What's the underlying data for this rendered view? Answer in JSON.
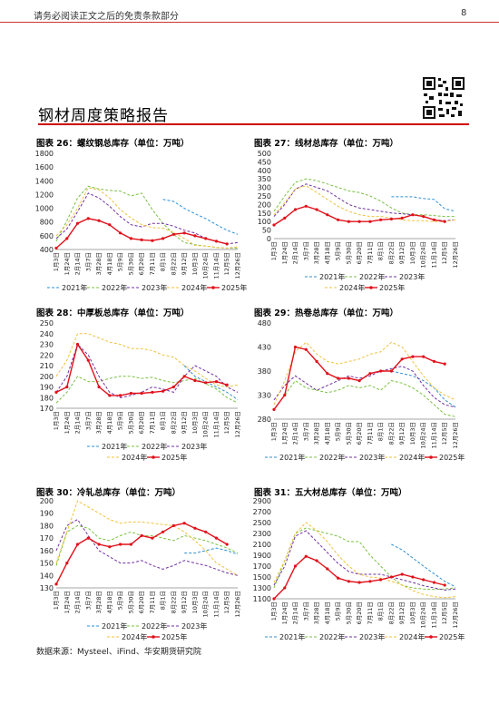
{
  "header": {
    "disclaimer": "请务必阅读正文之后的免责条款部分",
    "page_number": "8"
  },
  "doc_title": "钢材周度策略报告",
  "source": "数据来源：Mysteel、iFind、华安期货研究院",
  "colors": {
    "2021": "#2f8fd0",
    "2022": "#7bc043",
    "2023": "#7030a0",
    "2024": "#f0c23c",
    "2025": "#e0101a",
    "rule": "#cc0000"
  },
  "chart_data": [
    {
      "type": "line",
      "title": "图表 26：螺纹钢总库存（单位：万吨）",
      "x": [
        "1月3日",
        "1月24日",
        "2月14日",
        "3月7日",
        "3月28日",
        "4月18日",
        "5月9日",
        "5月30日",
        "6月20日",
        "7月11日",
        "8月1日",
        "8月22日",
        "9月12日",
        "10月3日",
        "10月24日",
        "11月14日",
        "12月5日",
        "12月26日"
      ],
      "xticks": [
        "1月3日",
        "1月24日",
        "2月14日",
        "3月7日",
        "3月28日",
        "4月18日",
        "5月9日",
        "5月30日",
        "6月20日",
        "7月11日",
        "8月1日",
        "8月22日",
        "9月12日",
        "10月3日",
        "10月24日",
        "11月14日",
        "12月5日",
        "12月26日"
      ],
      "yticks": [
        400,
        600,
        800,
        1000,
        1200,
        1400,
        1600,
        1800
      ],
      "ylim": [
        400,
        1800
      ],
      "legend_rows": [
        [
          "2021年",
          "2022年",
          "2023年",
          "2024年",
          "2025年"
        ]
      ],
      "series": [
        {
          "name": "2021年",
          "values": [
            null,
            null,
            null,
            null,
            null,
            null,
            null,
            null,
            null,
            null,
            1130,
            1100,
            1000,
            920,
            850,
            760,
            680,
            620
          ]
        },
        {
          "name": "2022年",
          "values": [
            520,
            820,
            1150,
            1320,
            1280,
            1260,
            1250,
            1180,
            1220,
            980,
            780,
            620,
            500,
            470,
            450,
            430,
            420,
            420
          ]
        },
        {
          "name": "2023年",
          "values": [
            560,
            700,
            950,
            1220,
            1150,
            1030,
            880,
            760,
            730,
            780,
            780,
            740,
            680,
            640,
            560,
            520,
            480,
            500
          ]
        },
        {
          "name": "2024年",
          "values": [
            600,
            760,
            1000,
            1300,
            1270,
            1150,
            980,
            860,
            760,
            720,
            710,
            650,
            560,
            460,
            450,
            430,
            420,
            440
          ]
        },
        {
          "name": "2025年",
          "values": [
            420,
            560,
            780,
            850,
            820,
            760,
            640,
            560,
            540,
            530,
            560,
            620,
            640,
            600,
            560,
            520,
            480,
            null
          ]
        }
      ]
    },
    {
      "type": "line",
      "title": "图表 27：线材总库存（单位：万吨）",
      "x": [
        "1月3日",
        "1月24日",
        "2月14日",
        "3月7日",
        "3月28日",
        "4月18日",
        "5月9日",
        "5月30日",
        "6月20日",
        "7月11日",
        "8月1日",
        "8月22日",
        "9月12日",
        "10月3日",
        "10月24日",
        "11月14日",
        "12月5日",
        "12月26日"
      ],
      "xticks": [
        "1月3日",
        "1月24日",
        "2月14日",
        "3月7日",
        "3月28日",
        "4月18日",
        "5月9日",
        "5月30日",
        "6月20日",
        "7月11日",
        "8月1日",
        "8月22日",
        "9月12日",
        "10月3日",
        "10月24日",
        "11月14日",
        "12月5日",
        "12月26日"
      ],
      "yticks": [
        0,
        50,
        100,
        150,
        200,
        250,
        300,
        350,
        400,
        450,
        500
      ],
      "ylim": [
        0,
        500
      ],
      "legend_rows": [
        [
          "2021年",
          "2022年",
          "2023年"
        ],
        [
          "2024年",
          "2025年"
        ]
      ],
      "series": [
        {
          "name": "2021年",
          "values": [
            null,
            null,
            null,
            null,
            null,
            null,
            null,
            null,
            null,
            null,
            null,
            245,
            245,
            245,
            235,
            230,
            175,
            160
          ]
        },
        {
          "name": "2022年",
          "values": [
            160,
            250,
            330,
            350,
            340,
            320,
            300,
            280,
            270,
            250,
            220,
            180,
            150,
            140,
            140,
            135,
            130,
            130
          ]
        },
        {
          "name": "2023年",
          "values": [
            130,
            200,
            290,
            320,
            300,
            280,
            240,
            200,
            180,
            170,
            160,
            150,
            145,
            140,
            130,
            110,
            105,
            110
          ]
        },
        {
          "name": "2024年",
          "values": [
            140,
            210,
            290,
            310,
            270,
            230,
            190,
            160,
            140,
            130,
            130,
            120,
            110,
            105,
            105,
            100,
            100,
            110
          ]
        },
        {
          "name": "2025年",
          "values": [
            80,
            120,
            170,
            190,
            170,
            140,
            110,
            100,
            100,
            100,
            110,
            115,
            120,
            140,
            130,
            110,
            100,
            null
          ]
        }
      ]
    },
    {
      "type": "line",
      "title": "图表 28：中厚板总库存（单位：万吨）",
      "x": [
        "1月3日",
        "1月24日",
        "2月14日",
        "3月7日",
        "3月28日",
        "4月18日",
        "5月9日",
        "5月30日",
        "6月20日",
        "7月11日",
        "8月1日",
        "8月22日",
        "9月12日",
        "10月3日",
        "10月24日",
        "11月14日",
        "12月5日",
        "12月26日"
      ],
      "xticks": [
        "1月3日",
        "1月24日",
        "2月14日",
        "3月7日",
        "3月28日",
        "4月18日",
        "5月9日",
        "5月30日",
        "6月20日",
        "7月11日",
        "8月1日",
        "8月22日",
        "9月12日",
        "10月3日",
        "10月24日",
        "11月14日",
        "12月5日",
        "12月26日"
      ],
      "yticks": [
        170,
        180,
        190,
        200,
        210,
        220,
        230,
        240,
        250
      ],
      "ylim": [
        170,
        250
      ],
      "legend_rows": [
        [
          "2021年",
          "2022年",
          "2023年"
        ],
        [
          "2024年",
          "2025年"
        ]
      ],
      "series": [
        {
          "name": "2021年",
          "values": [
            null,
            null,
            null,
            null,
            null,
            null,
            null,
            null,
            null,
            null,
            null,
            null,
            210,
            200,
            195,
            190,
            185,
            178
          ]
        },
        {
          "name": "2022年",
          "values": [
            175,
            185,
            200,
            195,
            195,
            198,
            200,
            200,
            198,
            199,
            196,
            194,
            196,
            198,
            193,
            188,
            180,
            175
          ]
        },
        {
          "name": "2023年",
          "values": [
            185,
            200,
            230,
            220,
            200,
            185,
            180,
            182,
            185,
            190,
            188,
            185,
            200,
            210,
            205,
            200,
            190,
            185
          ]
        },
        {
          "name": "2024年",
          "values": [
            200,
            215,
            240,
            240,
            236,
            232,
            230,
            226,
            226,
            224,
            220,
            218,
            210,
            205,
            198,
            192,
            190,
            192
          ]
        },
        {
          "name": "2025年",
          "values": [
            185,
            190,
            230,
            215,
            190,
            182,
            182,
            184,
            184,
            185,
            186,
            190,
            200,
            196,
            194,
            195,
            192,
            null
          ]
        }
      ]
    },
    {
      "type": "line",
      "title": "图表 29：热卷总库存（单位：万吨）",
      "x": [
        "1月3日",
        "1月24日",
        "2月14日",
        "3月7日",
        "3月28日",
        "4月18日",
        "5月9日",
        "5月30日",
        "6月20日",
        "7月11日",
        "8月1日",
        "8月22日",
        "9月12日",
        "10月3日",
        "10月24日",
        "11月14日",
        "12月5日",
        "12月26日"
      ],
      "xticks": [
        "1月3日",
        "1月24日",
        "2月14日",
        "3月7日",
        "3月28日",
        "4月18日",
        "5月9日",
        "5月30日",
        "6月20日",
        "7月11日",
        "8月1日",
        "8月22日",
        "9月12日",
        "10月3日",
        "10月24日",
        "11月14日",
        "12月5日",
        "12月26日"
      ],
      "yticks": [
        280,
        330,
        380,
        430,
        480
      ],
      "ylim": [
        280,
        480
      ],
      "legend_rows": [
        [
          "2021年",
          "2022年",
          "2023年",
          "2024年",
          "2025年"
        ]
      ],
      "series": [
        {
          "name": "2021年",
          "values": [
            null,
            null,
            null,
            null,
            null,
            null,
            null,
            null,
            null,
            null,
            null,
            380,
            375,
            370,
            360,
            345,
            320,
            305
          ]
        },
        {
          "name": "2022年",
          "values": [
            300,
            330,
            360,
            345,
            340,
            335,
            340,
            350,
            345,
            350,
            340,
            360,
            355,
            345,
            330,
            310,
            290,
            285
          ]
        },
        {
          "name": "2023年",
          "values": [
            320,
            350,
            370,
            355,
            340,
            350,
            360,
            370,
            365,
            370,
            380,
            385,
            390,
            380,
            350,
            325,
            310,
            305
          ]
        },
        {
          "name": "2024年",
          "values": [
            310,
            360,
            420,
            440,
            415,
            400,
            395,
            400,
            405,
            415,
            420,
            440,
            430,
            400,
            370,
            345,
            330,
            320
          ]
        },
        {
          "name": "2025年",
          "values": [
            300,
            330,
            430,
            425,
            400,
            375,
            365,
            365,
            360,
            375,
            380,
            380,
            405,
            410,
            410,
            400,
            395,
            null
          ]
        }
      ]
    },
    {
      "type": "line",
      "title": "图表 30：冷轧总库存（单位：万吨）",
      "x": [
        "1月3日",
        "1月24日",
        "2月14日",
        "3月7日",
        "3月28日",
        "4月18日",
        "5月9日",
        "5月30日",
        "6月20日",
        "7月11日",
        "8月1日",
        "8月22日",
        "9月12日",
        "10月3日",
        "10月24日",
        "11月14日",
        "12月5日",
        "12月26日"
      ],
      "xticks": [
        "1月3日",
        "1月24日",
        "2月14日",
        "3月7日",
        "3月28日",
        "4月18日",
        "5月9日",
        "5月30日",
        "6月20日",
        "7月11日",
        "8月1日",
        "8月22日",
        "9月12日",
        "10月3日",
        "10月24日",
        "11月14日",
        "12月5日",
        "12月26日"
      ],
      "yticks": [
        130,
        140,
        150,
        160,
        170,
        180,
        190,
        200
      ],
      "ylim": [
        130,
        200
      ],
      "legend_rows": [
        [
          "2021年",
          "2022年",
          "2023年"
        ],
        [
          "2024年",
          "2025年"
        ]
      ],
      "series": [
        {
          "name": "2021年",
          "values": [
            null,
            null,
            null,
            null,
            null,
            null,
            null,
            null,
            null,
            null,
            null,
            null,
            158,
            158,
            160,
            162,
            160,
            157
          ]
        },
        {
          "name": "2022年",
          "values": [
            148,
            175,
            180,
            178,
            170,
            168,
            172,
            175,
            172,
            172,
            170,
            168,
            172,
            170,
            168,
            165,
            162,
            158
          ]
        },
        {
          "name": "2023年",
          "values": [
            160,
            180,
            185,
            172,
            160,
            155,
            150,
            150,
            152,
            148,
            145,
            148,
            152,
            150,
            148,
            145,
            142,
            140
          ]
        },
        {
          "name": "2024年",
          "values": [
            150,
            175,
            200,
            195,
            190,
            185,
            182,
            183,
            183,
            182,
            181,
            180,
            175,
            168,
            160,
            150,
            145,
            140
          ]
        },
        {
          "name": "2025年",
          "values": [
            133,
            150,
            165,
            170,
            165,
            163,
            165,
            165,
            172,
            170,
            175,
            180,
            182,
            178,
            175,
            170,
            165,
            null
          ]
        }
      ]
    },
    {
      "type": "line",
      "title": "图表 31：五大材总库存（单位：万吨）",
      "x": [
        "1月3日",
        "1月24日",
        "2月14日",
        "3月7日",
        "3月28日",
        "4月18日",
        "5月9日",
        "5月30日",
        "6月20日",
        "7月11日",
        "8月1日",
        "8月22日",
        "9月12日",
        "10月3日",
        "10月24日",
        "11月14日",
        "12月5日",
        "12月26日"
      ],
      "xticks": [
        "1月3日",
        "1月24日",
        "2月14日",
        "3月7日",
        "3月28日",
        "4月18日",
        "5月9日",
        "5月30日",
        "6月20日",
        "7月11日",
        "8月1日",
        "8月22日",
        "9月12日",
        "10月3日",
        "10月24日",
        "11月14日",
        "12月5日",
        "12月26日"
      ],
      "yticks": [
        1100,
        1300,
        1500,
        1700,
        1900,
        2100,
        2300,
        2500,
        2700,
        2900
      ],
      "ylim": [
        1100,
        2900
      ],
      "legend_rows": [
        [
          "2021年",
          "2022年",
          "2023年",
          "2024年",
          "2025年"
        ]
      ],
      "series": [
        {
          "name": "2021年",
          "values": [
            null,
            null,
            null,
            null,
            null,
            null,
            null,
            null,
            null,
            null,
            null,
            2100,
            2000,
            1850,
            1700,
            1560,
            1420,
            1320
          ]
        },
        {
          "name": "2022年",
          "values": [
            1300,
            1800,
            2300,
            2400,
            2350,
            2300,
            2250,
            2150,
            2150,
            1900,
            1700,
            1500,
            1350,
            1300,
            1280,
            1270,
            1280,
            1300
          ]
        },
        {
          "name": "2023年",
          "values": [
            1350,
            1700,
            2250,
            2350,
            2150,
            1950,
            1750,
            1600,
            1550,
            1550,
            1550,
            1500,
            1450,
            1400,
            1340,
            1300,
            1260,
            1280
          ]
        },
        {
          "name": "2024年",
          "values": [
            1400,
            1800,
            2300,
            2500,
            2350,
            2150,
            1900,
            1700,
            1550,
            1500,
            1480,
            1420,
            1350,
            1250,
            1180,
            1140,
            1120,
            1140
          ]
        },
        {
          "name": "2025年",
          "values": [
            1100,
            1300,
            1700,
            1880,
            1800,
            1650,
            1480,
            1420,
            1400,
            1420,
            1450,
            1500,
            1550,
            1500,
            1450,
            1400,
            1350,
            null
          ]
        }
      ]
    }
  ]
}
